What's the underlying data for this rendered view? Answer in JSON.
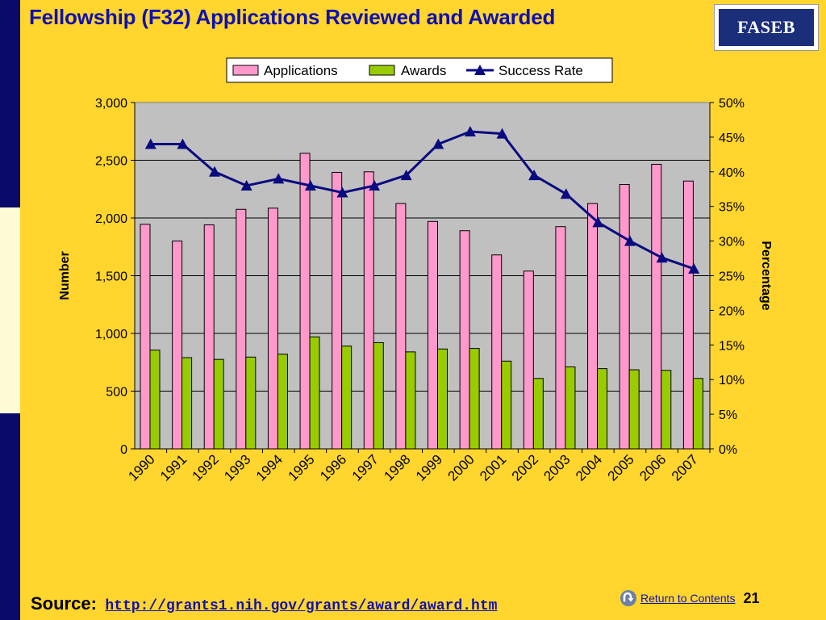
{
  "slide": {
    "title": "Fellowship (F32) Applications Reviewed and Awarded",
    "logo_text": "FASEB",
    "source_label": "Source:",
    "source_url": "http://grants1.nih.gov/grants/award/award.htm",
    "return_link": "Return to Contents",
    "page_number": "21",
    "return_icon": "return-arrow-icon"
  },
  "colors": {
    "background": "#FFD52E",
    "left_bar": "#0A0A6B",
    "title": "#1010B0",
    "plot_area": "#C0C0C0",
    "applications": "#FF99CC",
    "awards": "#99CC00",
    "success_rate": "#0A0A80"
  },
  "chart_data": {
    "type": "bar",
    "categories": [
      "1990",
      "1991",
      "1992",
      "1993",
      "1994",
      "1995",
      "1996",
      "1997",
      "1998",
      "1999",
      "2000",
      "2001",
      "2002",
      "2003",
      "2004",
      "2005",
      "2006",
      "2007"
    ],
    "series": [
      {
        "name": "Applications",
        "type": "bar",
        "axis": "left",
        "values": [
          1945,
          1800,
          1940,
          2075,
          2085,
          2560,
          2395,
          2400,
          2125,
          1970,
          1890,
          1680,
          1540,
          1925,
          2125,
          2290,
          2465,
          2320
        ]
      },
      {
        "name": "Awards",
        "type": "bar",
        "axis": "left",
        "values": [
          855,
          790,
          775,
          795,
          820,
          970,
          890,
          920,
          840,
          865,
          870,
          760,
          610,
          710,
          695,
          685,
          680,
          610
        ]
      },
      {
        "name": "Success Rate",
        "type": "line",
        "axis": "right",
        "marker": "triangle",
        "values": [
          44,
          44,
          40,
          38,
          39,
          38,
          37,
          38,
          39.5,
          44,
          45.8,
          45.5,
          39.5,
          36.8,
          32.7,
          30,
          27.6,
          26
        ]
      }
    ],
    "ylabel": "Number",
    "y2label": "Percentage",
    "ylim": [
      0,
      3000
    ],
    "yticks": [
      "0",
      "500",
      "1,000",
      "1,500",
      "2,000",
      "2,500",
      "3,000"
    ],
    "y2lim": [
      0,
      50
    ],
    "y2ticks": [
      "0%",
      "5%",
      "10%",
      "15%",
      "20%",
      "25%",
      "30%",
      "35%",
      "40%",
      "45%",
      "50%"
    ],
    "legend": "top-center",
    "grid": true
  }
}
